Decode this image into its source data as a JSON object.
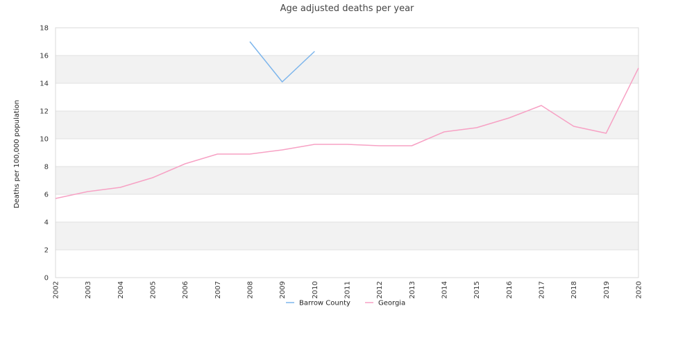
{
  "chart_data": {
    "type": "line",
    "title": "Age adjusted deaths per year",
    "ylabel": "Deaths per 100,000 population",
    "xlabel": "",
    "ylim": [
      0,
      18
    ],
    "yticks": [
      0,
      2,
      4,
      6,
      8,
      10,
      12,
      14,
      16,
      18
    ],
    "categories": [
      "2002",
      "2003",
      "2004",
      "2005",
      "2006",
      "2007",
      "2008",
      "2009",
      "2010",
      "2011",
      "2012",
      "2013",
      "2014",
      "2015",
      "2016",
      "2017",
      "2018",
      "2019",
      "2020"
    ],
    "grid": "alternating horizontal bands",
    "legend_position": "bottom-center",
    "series": [
      {
        "name": "Barrow County",
        "color": "#7cb5ec",
        "values": [
          null,
          null,
          null,
          null,
          null,
          null,
          17.0,
          14.1,
          16.3,
          null,
          null,
          null,
          null,
          null,
          null,
          null,
          null,
          null,
          null
        ]
      },
      {
        "name": "Georgia",
        "color": "#f7a1c4",
        "values": [
          5.7,
          6.2,
          6.5,
          7.2,
          8.2,
          8.9,
          8.9,
          9.2,
          9.6,
          9.6,
          9.5,
          9.5,
          10.5,
          10.8,
          11.5,
          12.4,
          10.9,
          10.4,
          15.1
        ]
      }
    ]
  },
  "colors": {
    "band": "#f2f2f2",
    "gridline": "#e0e0e0",
    "plot_border": "#d8d8d8"
  }
}
